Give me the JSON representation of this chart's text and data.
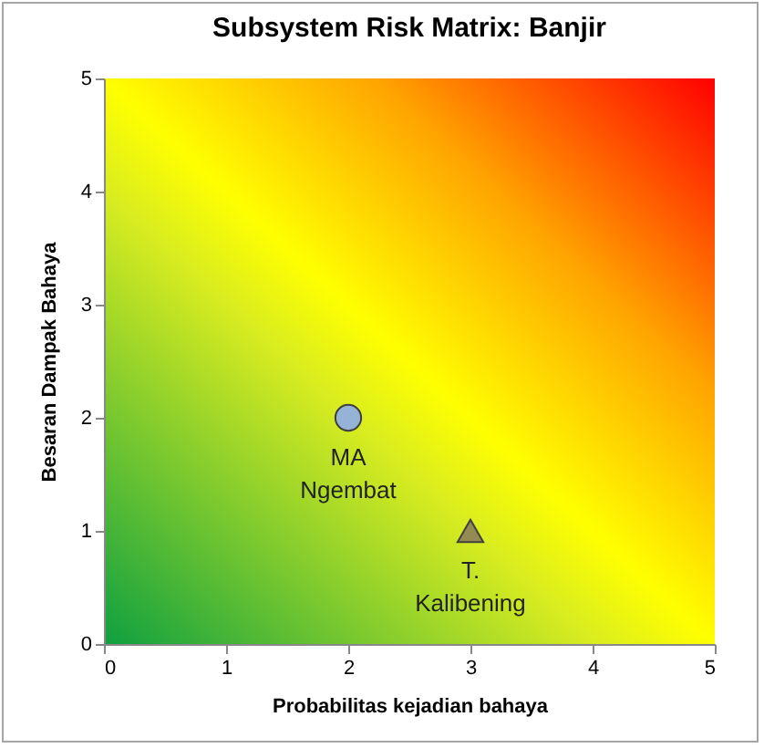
{
  "chart_data": {
    "type": "scatter",
    "title": "Subsystem Risk Matrix: Banjir",
    "xlabel": "Probabilitas kejadian  bahaya",
    "ylabel": "Besaran  Dampak Bahaya",
    "xlim": [
      0,
      5
    ],
    "ylim": [
      0,
      5
    ],
    "xticks": [
      0,
      1,
      2,
      3,
      4,
      5
    ],
    "yticks": [
      0,
      1,
      2,
      3,
      4,
      5
    ],
    "grid": false,
    "series": [
      {
        "name": "MA\nNgembat",
        "color": "#95b3d7",
        "marker": "circle",
        "x": [
          2
        ],
        "values": [
          2
        ]
      },
      {
        "name": "T.\nKalibening",
        "color": "#948a54",
        "marker": "triangle",
        "x": [
          3
        ],
        "values": [
          1
        ]
      }
    ]
  }
}
